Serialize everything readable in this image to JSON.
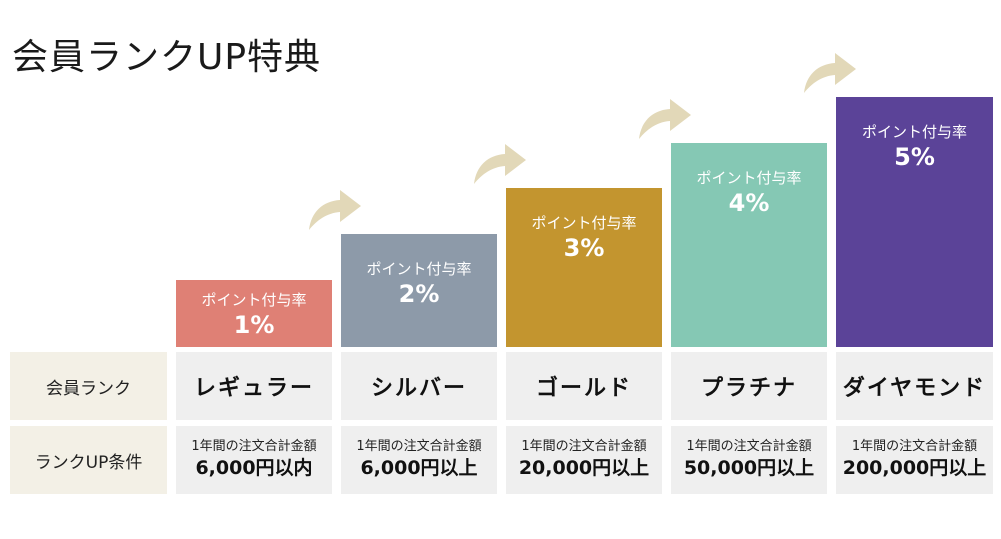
{
  "title": "会員ランクUP特典",
  "headers": {
    "rank": "会員ランク",
    "condition": "ランクUP条件"
  },
  "tiers": [
    {
      "name": "レギュラー",
      "rate_label": "ポイント付与率",
      "rate": "1%",
      "condition_label": "1年間の注文合計金額",
      "condition_value": "6,000円以内",
      "color": "#df8075"
    },
    {
      "name": "シルバー",
      "rate_label": "ポイント付与率",
      "rate": "2%",
      "condition_label": "1年間の注文合計金額",
      "condition_value": "6,000円以上",
      "color": "#8d9aa9"
    },
    {
      "name": "ゴールド",
      "rate_label": "ポイント付与率",
      "rate": "3%",
      "condition_label": "1年間の注文合計金額",
      "condition_value": "20,000円以上",
      "color": "#c3952f"
    },
    {
      "name": "プラチナ",
      "rate_label": "ポイント付与率",
      "rate": "4%",
      "condition_label": "1年間の注文合計金額",
      "condition_value": "50,000円以上",
      "color": "#85c8b4"
    },
    {
      "name": "ダイヤモンド",
      "rate_label": "ポイント付与率",
      "rate": "5%",
      "condition_label": "1年間の注文合計金額",
      "condition_value": "200,000円以上",
      "color": "#5b4398"
    }
  ],
  "arrow_color": "#e2d8b8",
  "header_bg": "#f3f0e6",
  "cell_bg": "#efefef"
}
